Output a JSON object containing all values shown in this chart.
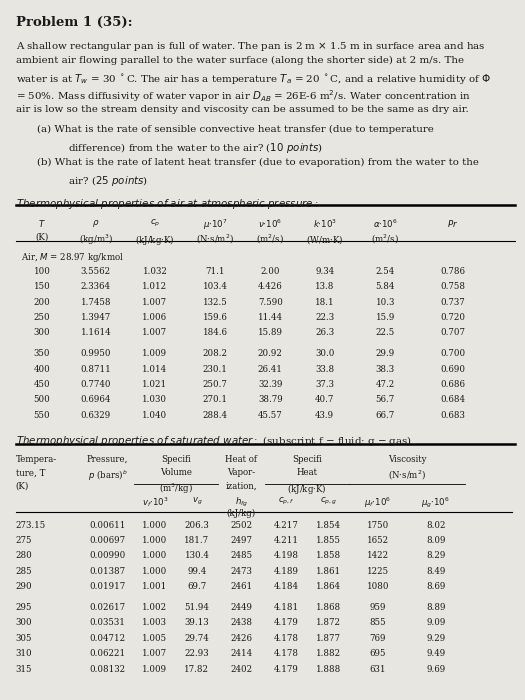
{
  "title": "Problem 1 (35):",
  "bg_color": "#e8e6e0",
  "text_color": "#1a1a1a",
  "table1_data": [
    [
      "100",
      "3.5562",
      "1.032",
      "71.1",
      "2.00",
      "9.34",
      "2.54",
      "0.786"
    ],
    [
      "150",
      "2.3364",
      "1.012",
      "103.4",
      "4.426",
      "13.8",
      "5.84",
      "0.758"
    ],
    [
      "200",
      "1.7458",
      "1.007",
      "132.5",
      "7.590",
      "18.1",
      "10.3",
      "0.737"
    ],
    [
      "250",
      "1.3947",
      "1.006",
      "159.6",
      "11.44",
      "22.3",
      "15.9",
      "0.720"
    ],
    [
      "300",
      "1.1614",
      "1.007",
      "184.6",
      "15.89",
      "26.3",
      "22.5",
      "0.707"
    ],
    [
      "350",
      "0.9950",
      "1.009",
      "208.2",
      "20.92",
      "30.0",
      "29.9",
      "0.700"
    ],
    [
      "400",
      "0.8711",
      "1.014",
      "230.1",
      "26.41",
      "33.8",
      "38.3",
      "0.690"
    ],
    [
      "450",
      "0.7740",
      "1.021",
      "250.7",
      "32.39",
      "37.3",
      "47.2",
      "0.686"
    ],
    [
      "500",
      "0.6964",
      "1.030",
      "270.1",
      "38.79",
      "40.7",
      "56.7",
      "0.684"
    ],
    [
      "550",
      "0.6329",
      "1.040",
      "288.4",
      "45.57",
      "43.9",
      "66.7",
      "0.683"
    ]
  ],
  "table2_data": [
    [
      "273.15",
      "0.00611",
      "1.000",
      "206.3",
      "2502",
      "4.217",
      "1.854",
      "1750",
      "8.02"
    ],
    [
      "275",
      "0.00697",
      "1.000",
      "181.7",
      "2497",
      "4.211",
      "1.855",
      "1652",
      "8.09"
    ],
    [
      "280",
      "0.00990",
      "1.000",
      "130.4",
      "2485",
      "4.198",
      "1.858",
      "1422",
      "8.29"
    ],
    [
      "285",
      "0.01387",
      "1.000",
      "99.4",
      "2473",
      "4.189",
      "1.861",
      "1225",
      "8.49"
    ],
    [
      "290",
      "0.01917",
      "1.001",
      "69.7",
      "2461",
      "4.184",
      "1.864",
      "1080",
      "8.69"
    ],
    [
      "295",
      "0.02617",
      "1.002",
      "51.94",
      "2449",
      "4.181",
      "1.868",
      "959",
      "8.89"
    ],
    [
      "300",
      "0.03531",
      "1.003",
      "39.13",
      "2438",
      "4.179",
      "1.872",
      "855",
      "9.09"
    ],
    [
      "305",
      "0.04712",
      "1.005",
      "29.74",
      "2426",
      "4.178",
      "1.877",
      "769",
      "9.29"
    ],
    [
      "310",
      "0.06221",
      "1.007",
      "22.93",
      "2414",
      "4.178",
      "1.882",
      "695",
      "9.49"
    ],
    [
      "315",
      "0.08132",
      "1.009",
      "17.82",
      "2402",
      "4.179",
      "1.888",
      "631",
      "9.69"
    ]
  ]
}
